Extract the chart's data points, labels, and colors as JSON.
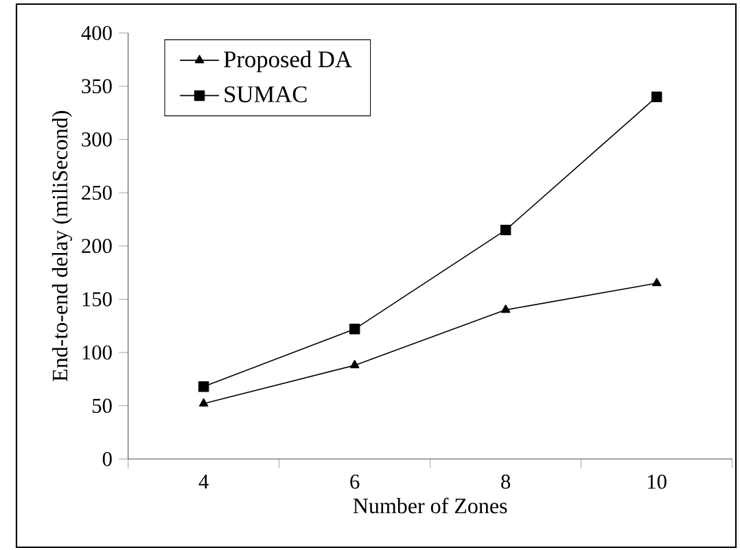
{
  "chart_data": {
    "type": "line",
    "xlabel": "Number of Zones",
    "ylabel": "End-to-end delay (miliSecond)",
    "categories": [
      "4",
      "6",
      "8",
      "10"
    ],
    "series": [
      {
        "name": "Proposed DA",
        "color": "#000000",
        "marker": "triangle",
        "values": [
          52,
          88,
          140,
          165
        ]
      },
      {
        "name": "SUMAC",
        "color": "#000000",
        "marker": "square",
        "values": [
          68,
          122,
          215,
          340
        ]
      }
    ],
    "ylim": [
      0,
      400
    ],
    "yticks": [
      0,
      50,
      100,
      150,
      200,
      250,
      300,
      350,
      400
    ],
    "grid": false,
    "legend": "top left",
    "line_style": "solid"
  }
}
